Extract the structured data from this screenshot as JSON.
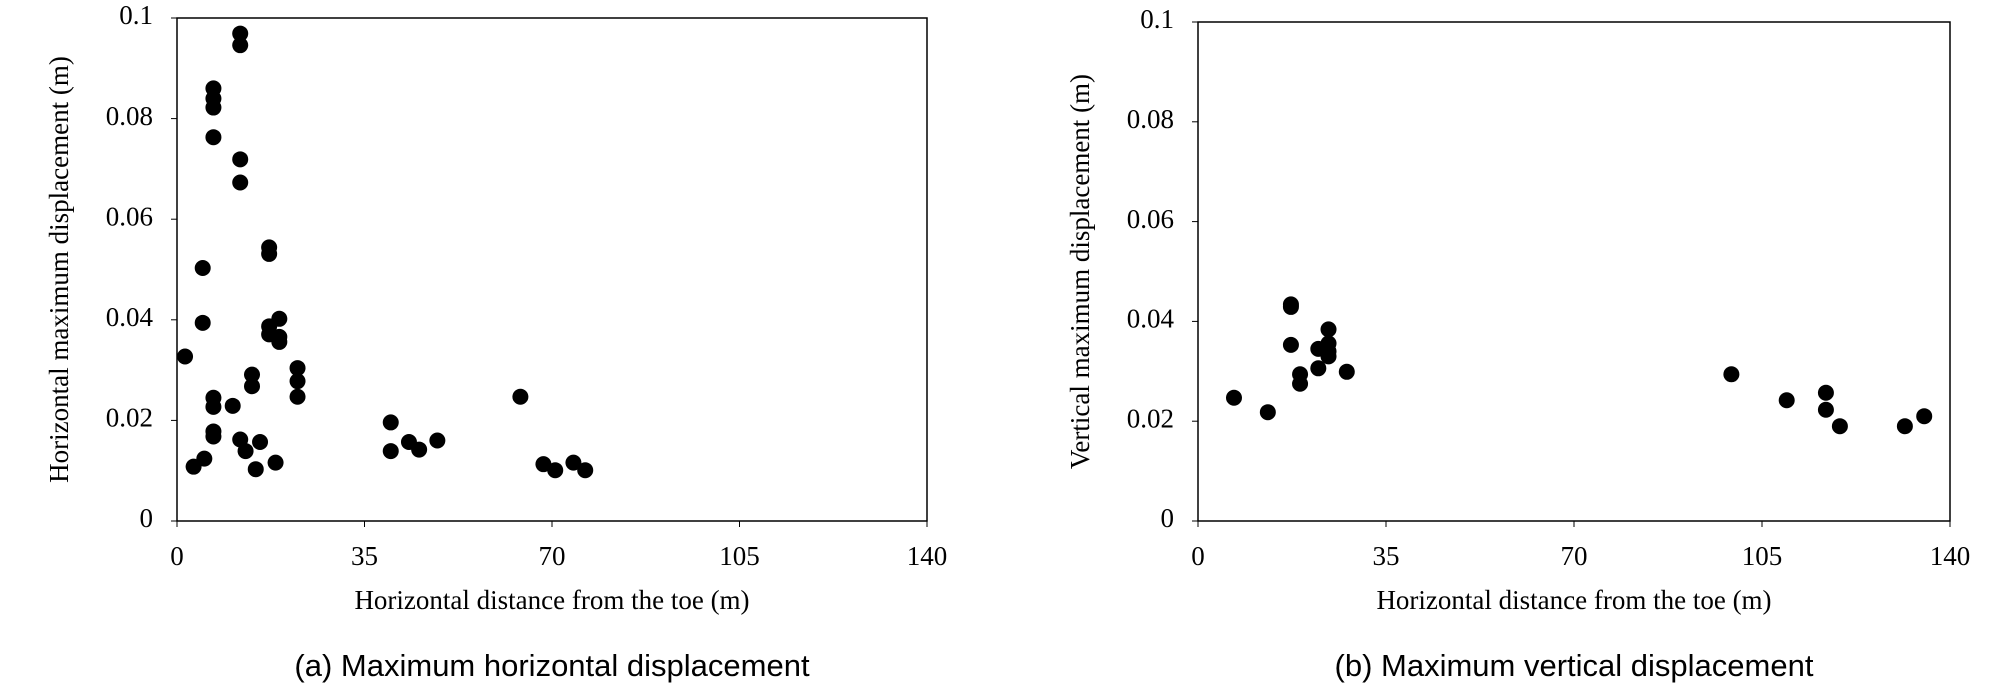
{
  "chart_data": [
    {
      "type": "scatter",
      "title": "(a) Maximum horizontal displacement",
      "xlabel": "Horizontal distance from the toe (m)",
      "ylabel": "Horizontal maximum displacement (m)",
      "color": "#000000",
      "x": [
        1.5,
        3.1,
        5.1,
        4.8,
        4.8,
        6.8,
        6.8,
        6.8,
        6.8,
        6.8,
        6.8,
        6.8,
        6.8,
        10.4,
        11.8,
        11.8,
        11.8,
        11.8,
        11.8,
        12.8,
        14,
        14,
        14.7,
        15.5,
        17.2,
        17.2,
        17.2,
        17.2,
        18.4,
        19.1,
        19.1,
        19.1,
        22.5,
        22.5,
        22.5,
        39.9,
        39.9,
        43.3,
        45.2,
        48.6,
        64.1,
        68.4,
        70.6,
        74,
        76.2
      ],
      "values": [
        0.0327,
        0.0108,
        0.0124,
        0.0503,
        0.0394,
        0.086,
        0.084,
        0.0822,
        0.0763,
        0.0245,
        0.0227,
        0.0178,
        0.0168,
        0.0229,
        0.0969,
        0.0946,
        0.0719,
        0.0673,
        0.0162,
        0.0139,
        0.0291,
        0.0268,
        0.0103,
        0.0157,
        0.0544,
        0.0531,
        0.0387,
        0.0371,
        0.0116,
        0.0402,
        0.0366,
        0.0356,
        0.0304,
        0.0278,
        0.0247,
        0.0196,
        0.0139,
        0.0157,
        0.0142,
        0.016,
        0.0247,
        0.0113,
        0.0101,
        0.0116,
        0.0101
      ],
      "xlim": [
        0,
        140
      ],
      "xticks": [
        0,
        35,
        70,
        105,
        140
      ],
      "ylim": [
        0,
        0.1
      ],
      "yticks": [
        0,
        0.02,
        0.04,
        0.06,
        0.08,
        0.1
      ]
    },
    {
      "type": "scatter",
      "title": "(b) Maximum vertical displacement",
      "xlabel": "Horizontal distance from the toe (m)",
      "ylabel": "Vertical maximum displacement (m)",
      "color": "#000000",
      "x": [
        6.7,
        13,
        17.3,
        17.3,
        17.3,
        19,
        19,
        22.4,
        22.4,
        24.3,
        24.3,
        24.3,
        24.3,
        27.7,
        99.3,
        109.6,
        116.9,
        116.9,
        119.5,
        131.6,
        135.2
      ],
      "values": [
        0.0247,
        0.0218,
        0.0434,
        0.0429,
        0.0353,
        0.0294,
        0.0275,
        0.0345,
        0.0306,
        0.0384,
        0.0356,
        0.034,
        0.033,
        0.0299,
        0.0294,
        0.0242,
        0.0257,
        0.0223,
        0.019,
        0.019,
        0.021
      ],
      "xlim": [
        0,
        140
      ],
      "xticks": [
        0,
        35,
        70,
        105,
        140
      ],
      "ylim": [
        0,
        0.1
      ],
      "yticks": [
        0,
        0.02,
        0.04,
        0.06,
        0.08,
        0.1
      ]
    }
  ]
}
